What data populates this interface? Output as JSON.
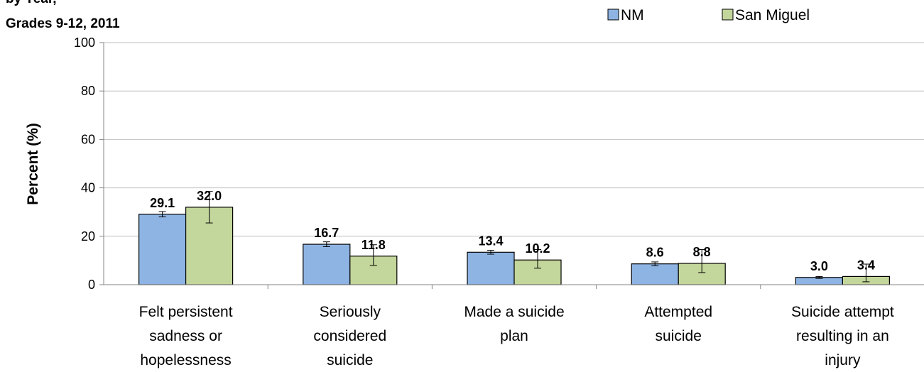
{
  "chart_data": {
    "type": "bar",
    "title_lines": [
      "by Year,",
      "Grades 9-12, 2011"
    ],
    "ylabel": "Percent (%)",
    "xlabel": "",
    "ylim": [
      0,
      100
    ],
    "yticks": [
      0,
      20,
      40,
      60,
      80,
      100
    ],
    "grid": true,
    "legend_position": "top-right",
    "categories": [
      [
        "Felt persistent",
        "sadness or",
        "hopelessness"
      ],
      [
        "Seriously",
        "considered",
        "suicide"
      ],
      [
        "Made a suicide",
        "plan"
      ],
      [
        "Attempted",
        "suicide"
      ],
      [
        "Suicide attempt",
        "resulting in an",
        "injury"
      ]
    ],
    "series": [
      {
        "name": "NM",
        "color": "#8eb4e3",
        "values": [
          29.1,
          16.7,
          13.4,
          8.6,
          3.0
        ],
        "labels": [
          "29.1",
          "16.7",
          "13.4",
          "8.6",
          "3.0"
        ],
        "ci_low": [
          28.0,
          15.7,
          12.6,
          7.8,
          2.6
        ],
        "ci_high": [
          30.2,
          17.7,
          14.2,
          9.4,
          3.4
        ]
      },
      {
        "name": "San Miguel",
        "color": "#c3d69b",
        "values": [
          32.0,
          11.8,
          10.2,
          8.8,
          3.4
        ],
        "labels": [
          "32.0",
          "11.8",
          "10.2",
          "8.8",
          "3.4"
        ],
        "ci_low": [
          25.5,
          8.0,
          6.8,
          5.0,
          1.2
        ],
        "ci_high": [
          38.5,
          16.5,
          14.5,
          14.5,
          8.5
        ]
      }
    ]
  }
}
